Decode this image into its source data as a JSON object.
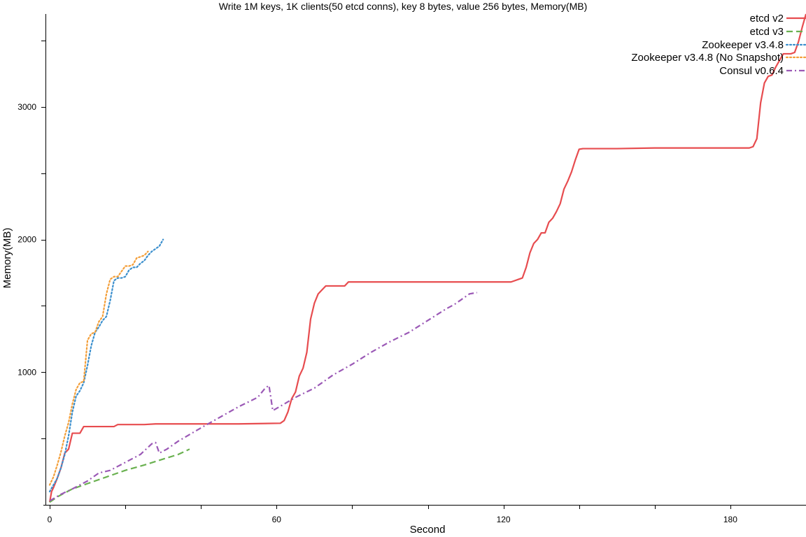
{
  "chart_data": {
    "type": "line",
    "title": "Write 1M keys, 1K clients(50 etcd conns), key 8 bytes, value 256 bytes, Memory(MB)",
    "xlabel": "Second",
    "ylabel": "Memory(MB)",
    "xlim": [
      0,
      200
    ],
    "ylim": [
      0,
      3700
    ],
    "xticks": [
      0,
      60,
      120,
      180
    ],
    "xminorticks": [
      0,
      20,
      40,
      60,
      80,
      100,
      120,
      140,
      160,
      180,
      200
    ],
    "yticks": [
      1000,
      2000,
      3000
    ],
    "yminorticks": [
      500,
      1000,
      1500,
      2000,
      2500,
      3000,
      3500
    ],
    "grid": false,
    "legend_position": "top-right",
    "series": [
      {
        "name": "etcd v2",
        "color": "#e74c4f",
        "dash": "solid",
        "points": [
          [
            0,
            20
          ],
          [
            0.5,
            100
          ],
          [
            1,
            130
          ],
          [
            2,
            200
          ],
          [
            3,
            280
          ],
          [
            4,
            390
          ],
          [
            5,
            420
          ],
          [
            6,
            540
          ],
          [
            7,
            540
          ],
          [
            8,
            540
          ],
          [
            9,
            590
          ],
          [
            10,
            590
          ],
          [
            15,
            590
          ],
          [
            17,
            590
          ],
          [
            18,
            605
          ],
          [
            25,
            605
          ],
          [
            28,
            610
          ],
          [
            50,
            610
          ],
          [
            61,
            615
          ],
          [
            62,
            635
          ],
          [
            63,
            700
          ],
          [
            64,
            800
          ],
          [
            65,
            850
          ],
          [
            66,
            970
          ],
          [
            67,
            1030
          ],
          [
            68,
            1150
          ],
          [
            69,
            1400
          ],
          [
            70,
            1520
          ],
          [
            71,
            1590
          ],
          [
            72,
            1620
          ],
          [
            73,
            1650
          ],
          [
            74,
            1650
          ],
          [
            78,
            1650
          ],
          [
            79,
            1680
          ],
          [
            80,
            1680
          ],
          [
            100,
            1680
          ],
          [
            122,
            1680
          ],
          [
            123,
            1690
          ],
          [
            124,
            1700
          ],
          [
            125,
            1710
          ],
          [
            126,
            1790
          ],
          [
            127,
            1900
          ],
          [
            128,
            1970
          ],
          [
            129,
            2000
          ],
          [
            130,
            2050
          ],
          [
            131,
            2050
          ],
          [
            132,
            2130
          ],
          [
            133,
            2160
          ],
          [
            134,
            2210
          ],
          [
            135,
            2270
          ],
          [
            136,
            2380
          ],
          [
            137,
            2440
          ],
          [
            138,
            2510
          ],
          [
            139,
            2600
          ],
          [
            140,
            2680
          ],
          [
            141,
            2685
          ],
          [
            150,
            2685
          ],
          [
            160,
            2690
          ],
          [
            185,
            2690
          ],
          [
            186,
            2700
          ],
          [
            187,
            2760
          ],
          [
            188,
            3030
          ],
          [
            189,
            3180
          ],
          [
            190,
            3230
          ],
          [
            191,
            3240
          ],
          [
            192,
            3300
          ],
          [
            193,
            3350
          ],
          [
            194,
            3400
          ],
          [
            196,
            3400
          ],
          [
            197,
            3410
          ],
          [
            198,
            3490
          ],
          [
            199,
            3600
          ],
          [
            200,
            3700
          ]
        ]
      },
      {
        "name": "etcd v3",
        "color": "#6ab150",
        "dash": "dashed",
        "points": [
          [
            0,
            20
          ],
          [
            2,
            60
          ],
          [
            4,
            90
          ],
          [
            6,
            120
          ],
          [
            10,
            160
          ],
          [
            15,
            210
          ],
          [
            20,
            260
          ],
          [
            25,
            300
          ],
          [
            30,
            345
          ],
          [
            34,
            380
          ],
          [
            37,
            420
          ]
        ]
      },
      {
        "name": "Zookeeper v3.4.8",
        "color": "#3b8fcd",
        "dash": "dotted",
        "points": [
          [
            0,
            100
          ],
          [
            1,
            150
          ],
          [
            2,
            200
          ],
          [
            3,
            280
          ],
          [
            4,
            380
          ],
          [
            5,
            520
          ],
          [
            6,
            700
          ],
          [
            7,
            820
          ],
          [
            8,
            860
          ],
          [
            9,
            920
          ],
          [
            10,
            1050
          ],
          [
            11,
            1200
          ],
          [
            12,
            1300
          ],
          [
            13,
            1340
          ],
          [
            14,
            1390
          ],
          [
            15,
            1420
          ],
          [
            16,
            1540
          ],
          [
            17,
            1690
          ],
          [
            18,
            1710
          ],
          [
            19,
            1710
          ],
          [
            20,
            1720
          ],
          [
            21,
            1770
          ],
          [
            22,
            1790
          ],
          [
            23,
            1790
          ],
          [
            24,
            1820
          ],
          [
            25,
            1840
          ],
          [
            26,
            1880
          ],
          [
            27,
            1910
          ],
          [
            28,
            1930
          ],
          [
            29,
            1950
          ],
          [
            30,
            2000
          ]
        ]
      },
      {
        "name": "Zookeeper v3.4.8 (No Snapshot)",
        "color": "#f39f3a",
        "dash": "dotted",
        "points": [
          [
            0,
            150
          ],
          [
            1,
            210
          ],
          [
            2,
            300
          ],
          [
            3,
            400
          ],
          [
            4,
            520
          ],
          [
            5,
            620
          ],
          [
            6,
            760
          ],
          [
            7,
            870
          ],
          [
            8,
            920
          ],
          [
            9,
            930
          ],
          [
            10,
            1240
          ],
          [
            11,
            1290
          ],
          [
            12,
            1300
          ],
          [
            13,
            1380
          ],
          [
            14,
            1420
          ],
          [
            15,
            1590
          ],
          [
            16,
            1700
          ],
          [
            17,
            1720
          ],
          [
            18,
            1720
          ],
          [
            19,
            1760
          ],
          [
            20,
            1800
          ],
          [
            21,
            1800
          ],
          [
            22,
            1810
          ],
          [
            23,
            1860
          ],
          [
            24,
            1870
          ],
          [
            25,
            1880
          ],
          [
            26,
            1910
          ]
        ]
      },
      {
        "name": "Consul v0.6.4",
        "color": "#9b59b6",
        "dash": "dashdot",
        "points": [
          [
            0,
            30
          ],
          [
            3,
            80
          ],
          [
            6,
            120
          ],
          [
            10,
            180
          ],
          [
            13,
            240
          ],
          [
            16,
            260
          ],
          [
            20,
            320
          ],
          [
            24,
            380
          ],
          [
            27,
            460
          ],
          [
            28,
            470
          ],
          [
            29,
            390
          ],
          [
            31,
            420
          ],
          [
            34,
            480
          ],
          [
            37,
            530
          ],
          [
            40,
            580
          ],
          [
            45,
            660
          ],
          [
            50,
            740
          ],
          [
            55,
            810
          ],
          [
            57,
            880
          ],
          [
            58,
            900
          ],
          [
            59,
            710
          ],
          [
            62,
            760
          ],
          [
            65,
            810
          ],
          [
            70,
            880
          ],
          [
            75,
            980
          ],
          [
            80,
            1060
          ],
          [
            85,
            1150
          ],
          [
            90,
            1230
          ],
          [
            95,
            1300
          ],
          [
            100,
            1390
          ],
          [
            105,
            1480
          ],
          [
            107,
            1510
          ],
          [
            109,
            1550
          ],
          [
            111,
            1590
          ],
          [
            113,
            1600
          ]
        ]
      }
    ]
  }
}
